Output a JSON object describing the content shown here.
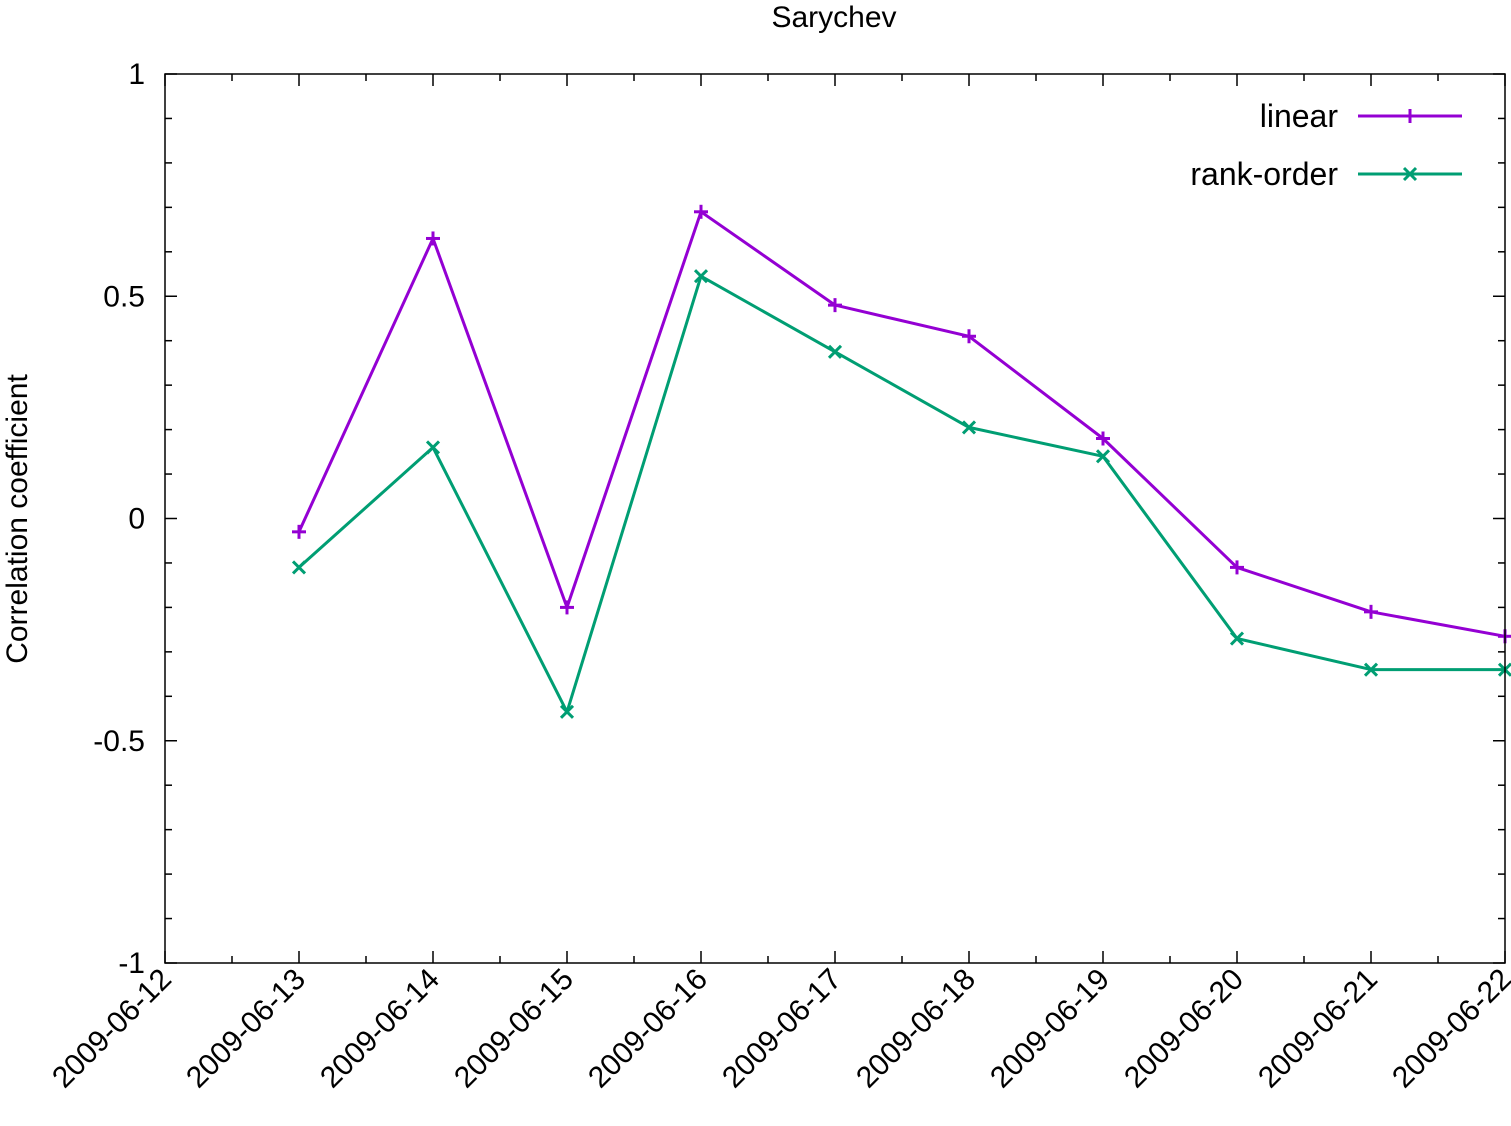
{
  "chart_data": {
    "type": "line",
    "title": "Sarychev",
    "xlabel": "",
    "ylabel": "Correlation coefficient",
    "x": [
      "2009-06-13",
      "2009-06-14",
      "2009-06-15",
      "2009-06-16",
      "2009-06-17",
      "2009-06-18",
      "2009-06-19",
      "2009-06-20",
      "2009-06-21",
      "2009-06-22"
    ],
    "x_ticks": [
      "2009-06-12",
      "2009-06-13",
      "2009-06-14",
      "2009-06-15",
      "2009-06-16",
      "2009-06-17",
      "2009-06-18",
      "2009-06-19",
      "2009-06-20",
      "2009-06-21",
      "2009-06-22"
    ],
    "xlim": [
      "2009-06-12",
      "2009-06-22"
    ],
    "ylim": [
      -1,
      1
    ],
    "y_ticks": [
      "-1",
      "-0.5",
      "0",
      "0.5",
      "1"
    ],
    "grid": false,
    "legend_position": "top-right",
    "series": [
      {
        "name": "linear",
        "color": "#9400d3",
        "marker": "plus",
        "values": [
          -0.03,
          0.63,
          -0.2,
          0.69,
          0.48,
          0.41,
          0.18,
          -0.11,
          -0.21,
          -0.265
        ]
      },
      {
        "name": "rank-order",
        "color": "#009e73",
        "marker": "cross",
        "values": [
          -0.11,
          0.16,
          -0.435,
          0.545,
          0.375,
          0.205,
          0.14,
          -0.27,
          -0.34,
          -0.34
        ]
      }
    ]
  }
}
